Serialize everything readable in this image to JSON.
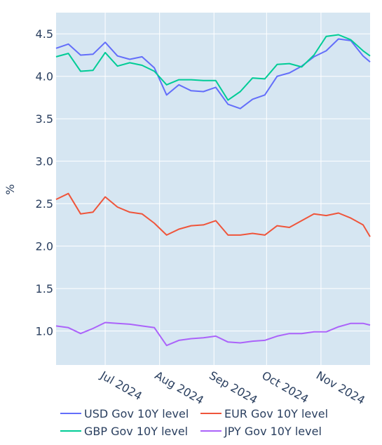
{
  "chart_data": {
    "type": "line",
    "title": "",
    "xlabel": "",
    "ylabel": "%",
    "ylim": [
      0.6,
      4.75
    ],
    "yticks": [
      1.0,
      1.5,
      2.0,
      2.5,
      3.0,
      3.5,
      4.0,
      4.5
    ],
    "ytick_labels": [
      "1.0",
      "1.5",
      "2.0",
      "2.5",
      "3.0",
      "3.5",
      "4.0",
      "4.5"
    ],
    "xlim": [
      "2024-06-03",
      "2024-11-29"
    ],
    "xticks": [
      "2024-07-01",
      "2024-08-01",
      "2024-09-01",
      "2024-10-01",
      "2024-11-01"
    ],
    "xtick_labels": [
      "Jul 2024",
      "Aug 2024",
      "Sep 2024",
      "Oct 2024",
      "Nov 2024"
    ],
    "grid": true,
    "legend_position": "bottom",
    "colors": {
      "plot_bg": "#d6e6f2",
      "grid": "#ffffff",
      "text": "#2a3f5f"
    },
    "dates": [
      "2024-06-03",
      "2024-06-10",
      "2024-06-17",
      "2024-06-24",
      "2024-07-01",
      "2024-07-08",
      "2024-07-15",
      "2024-07-22",
      "2024-07-29",
      "2024-08-05",
      "2024-08-12",
      "2024-08-19",
      "2024-08-26",
      "2024-09-02",
      "2024-09-09",
      "2024-09-16",
      "2024-09-23",
      "2024-09-30",
      "2024-10-07",
      "2024-10-14",
      "2024-10-21",
      "2024-10-28",
      "2024-11-04",
      "2024-11-11",
      "2024-11-18",
      "2024-11-25",
      "2024-11-29"
    ],
    "series": [
      {
        "name": "USD Gov 10Y level",
        "color": "#636efa",
        "values": [
          4.33,
          4.38,
          4.25,
          4.26,
          4.4,
          4.24,
          4.2,
          4.23,
          4.1,
          3.78,
          3.9,
          3.83,
          3.82,
          3.87,
          3.67,
          3.62,
          3.73,
          3.78,
          4.0,
          4.04,
          4.12,
          4.23,
          4.3,
          4.44,
          4.42,
          4.24,
          4.17
        ]
      },
      {
        "name": "EUR Gov 10Y level",
        "color": "#ef553b",
        "values": [
          2.55,
          2.62,
          2.38,
          2.4,
          2.58,
          2.46,
          2.4,
          2.38,
          2.27,
          2.13,
          2.2,
          2.24,
          2.25,
          2.3,
          2.13,
          2.13,
          2.15,
          2.13,
          2.24,
          2.22,
          2.3,
          2.38,
          2.36,
          2.39,
          2.33,
          2.25,
          2.11
        ]
      },
      {
        "name": "GBP Gov 10Y level",
        "color": "#00cc96",
        "values": [
          4.23,
          4.27,
          4.06,
          4.07,
          4.28,
          4.12,
          4.16,
          4.13,
          4.06,
          3.9,
          3.96,
          3.96,
          3.95,
          3.95,
          3.72,
          3.82,
          3.98,
          3.97,
          4.14,
          4.15,
          4.11,
          4.25,
          4.47,
          4.49,
          4.43,
          4.3,
          4.24
        ]
      },
      {
        "name": "JPY Gov 10Y level",
        "color": "#ab63fa",
        "values": [
          1.06,
          1.04,
          0.97,
          1.03,
          1.1,
          1.09,
          1.08,
          1.06,
          1.04,
          0.83,
          0.89,
          0.91,
          0.92,
          0.94,
          0.87,
          0.86,
          0.88,
          0.89,
          0.94,
          0.97,
          0.97,
          0.99,
          0.99,
          1.05,
          1.09,
          1.09,
          1.07
        ]
      }
    ]
  }
}
